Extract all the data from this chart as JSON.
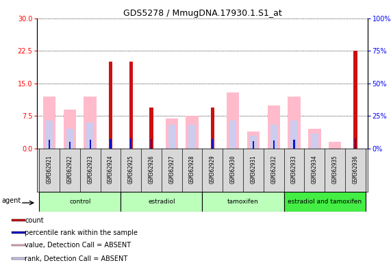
{
  "title": "GDS5278 / MmugDNA.17930.1.S1_at",
  "samples": [
    "GSM362921",
    "GSM362922",
    "GSM362923",
    "GSM362924",
    "GSM362925",
    "GSM362926",
    "GSM362927",
    "GSM362928",
    "GSM362929",
    "GSM362930",
    "GSM362931",
    "GSM362932",
    "GSM362933",
    "GSM362934",
    "GSM362935",
    "GSM362936"
  ],
  "count_values": [
    0,
    0,
    0,
    20,
    20,
    9.5,
    0,
    0,
    9.5,
    0,
    0,
    0,
    0,
    0,
    0,
    22.5
  ],
  "rank_values": [
    7,
    5.5,
    7,
    7.5,
    8,
    7.5,
    0,
    0,
    7.5,
    0,
    6,
    6.5,
    7,
    0,
    0,
    8
  ],
  "value_absent": [
    12,
    9,
    12,
    0,
    0,
    0,
    7,
    7.5,
    0,
    13,
    4,
    10,
    12,
    4.5,
    1.5,
    0
  ],
  "rank_absent": [
    6.5,
    4.5,
    6,
    0,
    0,
    0,
    5.5,
    5.5,
    0,
    6.5,
    3,
    5.5,
    6.5,
    3.5,
    0,
    0
  ],
  "group_labels": [
    "control",
    "estradiol",
    "tamoxifen",
    "estradiol and tamoxifen"
  ],
  "group_starts": [
    0,
    4,
    8,
    12
  ],
  "group_ends": [
    4,
    8,
    12,
    16
  ],
  "group_colors": [
    "#bbffbb",
    "#bbffbb",
    "#bbffbb",
    "#44ee44"
  ],
  "ylim_left": [
    0,
    30
  ],
  "ylim_right": [
    0,
    100
  ],
  "yticks_left": [
    0,
    7.5,
    15,
    22.5,
    30
  ],
  "yticks_right": [
    0,
    25,
    50,
    75,
    100
  ],
  "count_color": "#cc1111",
  "rank_color": "#1111cc",
  "value_absent_color": "#ffbbcc",
  "rank_absent_color": "#ccccee",
  "plot_bg": "#ffffff",
  "grid_color": "#000000",
  "title_fontsize": 9,
  "tick_fontsize": 7,
  "label_fontsize": 7.5
}
